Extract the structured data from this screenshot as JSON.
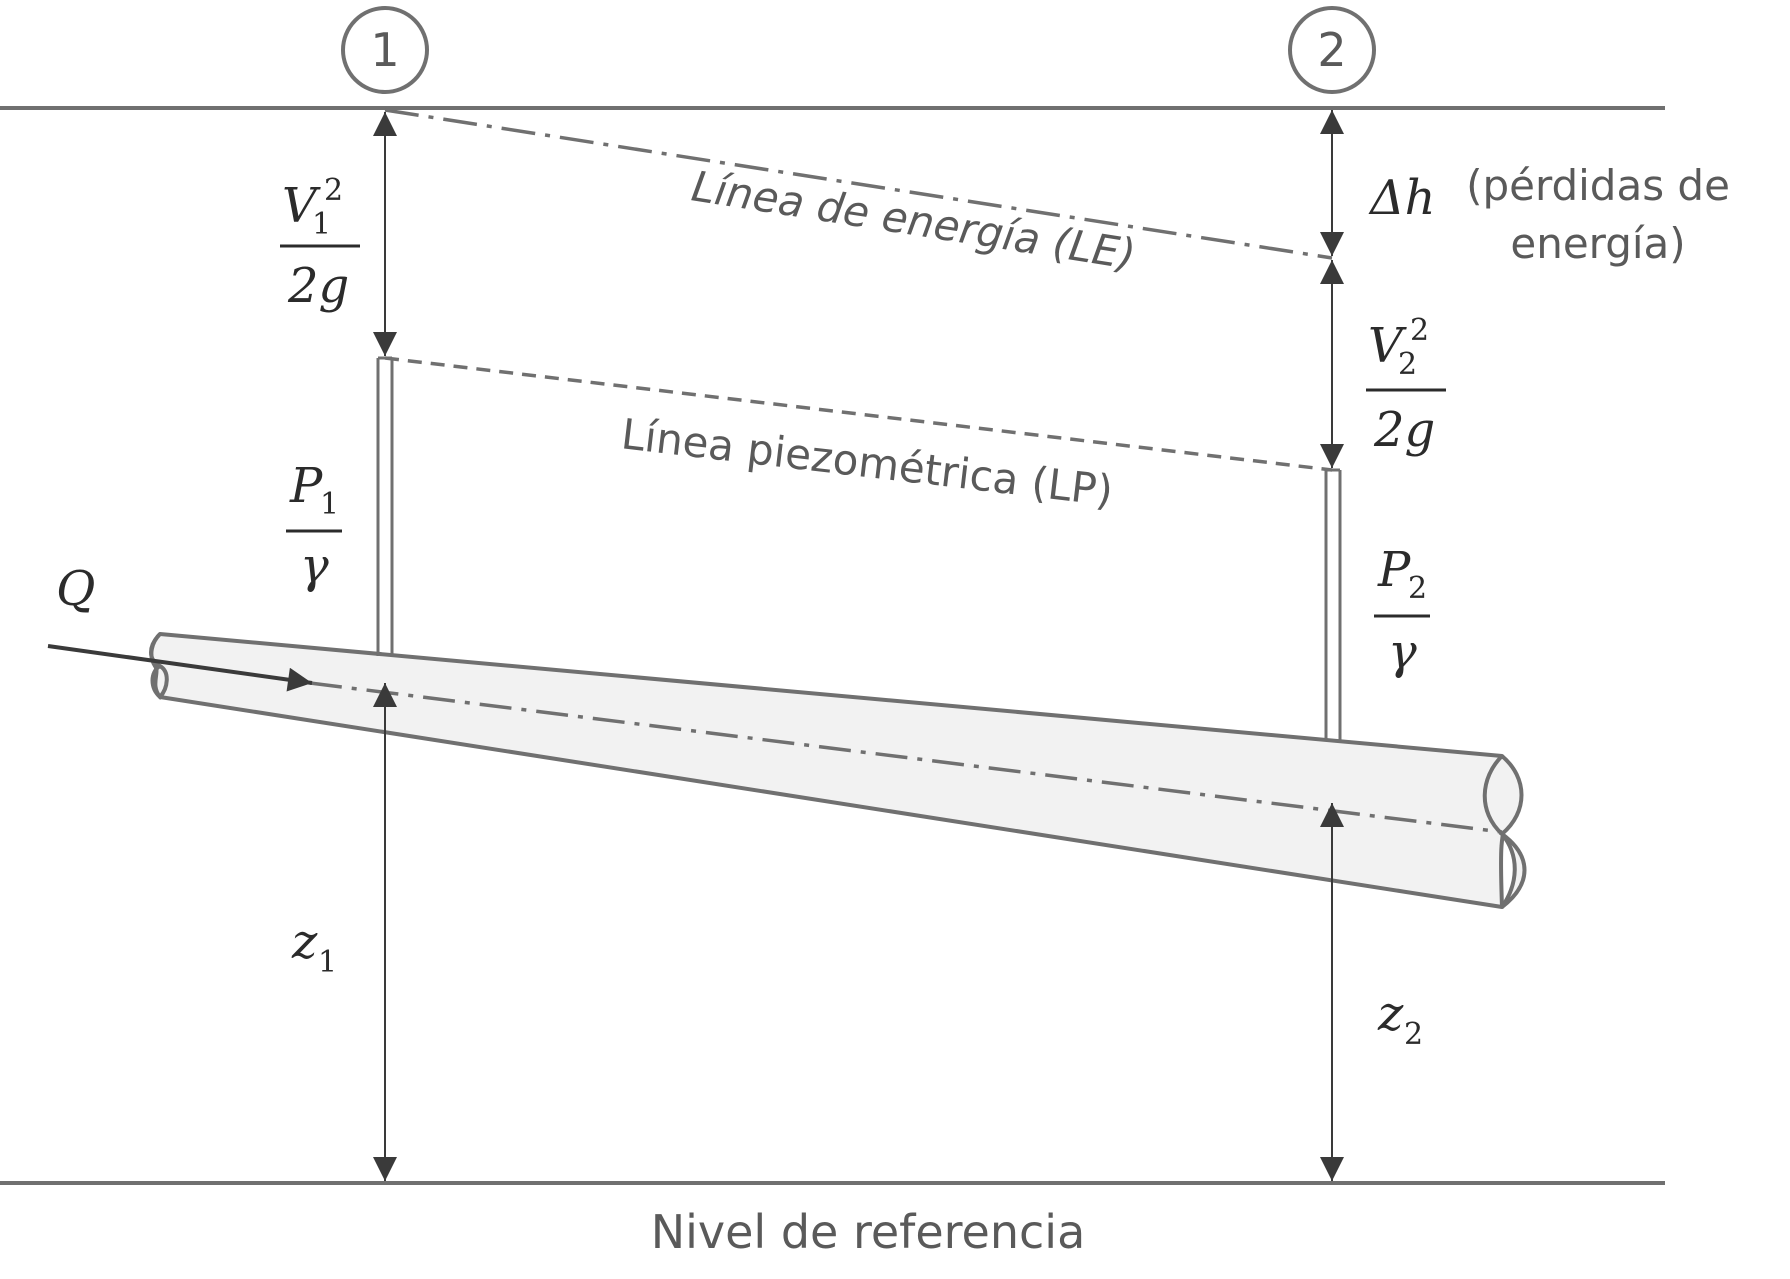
{
  "sections": [
    "1",
    "2"
  ],
  "energy_line_label": "Línea de energía (LE)",
  "piezometric_line_label": "Línea piezométrica (LP)",
  "reference_label": "Nivel de referencia",
  "flow_label": "Q",
  "loss": {
    "symbol": "Δh",
    "description_line1": "(pérdidas de",
    "description_line2": "energía)"
  },
  "section1": {
    "velocity_head": {
      "V": "V",
      "sub": "1",
      "exp": "2",
      "den": "2g"
    },
    "pressure_head": {
      "P": "P",
      "sub": "1",
      "den": "γ"
    },
    "elevation": {
      "z": "z",
      "sub": "1"
    }
  },
  "section2": {
    "velocity_head": {
      "V": "V",
      "sub": "2",
      "exp": "2",
      "den": "2g"
    },
    "pressure_head": {
      "P": "P",
      "sub": "2",
      "den": "γ"
    },
    "elevation": {
      "z": "z",
      "sub": "2"
    }
  },
  "colors": {
    "lines": "#707070",
    "pipe_fill": "#f2f2f2",
    "arrow": "#3a3a3a"
  }
}
